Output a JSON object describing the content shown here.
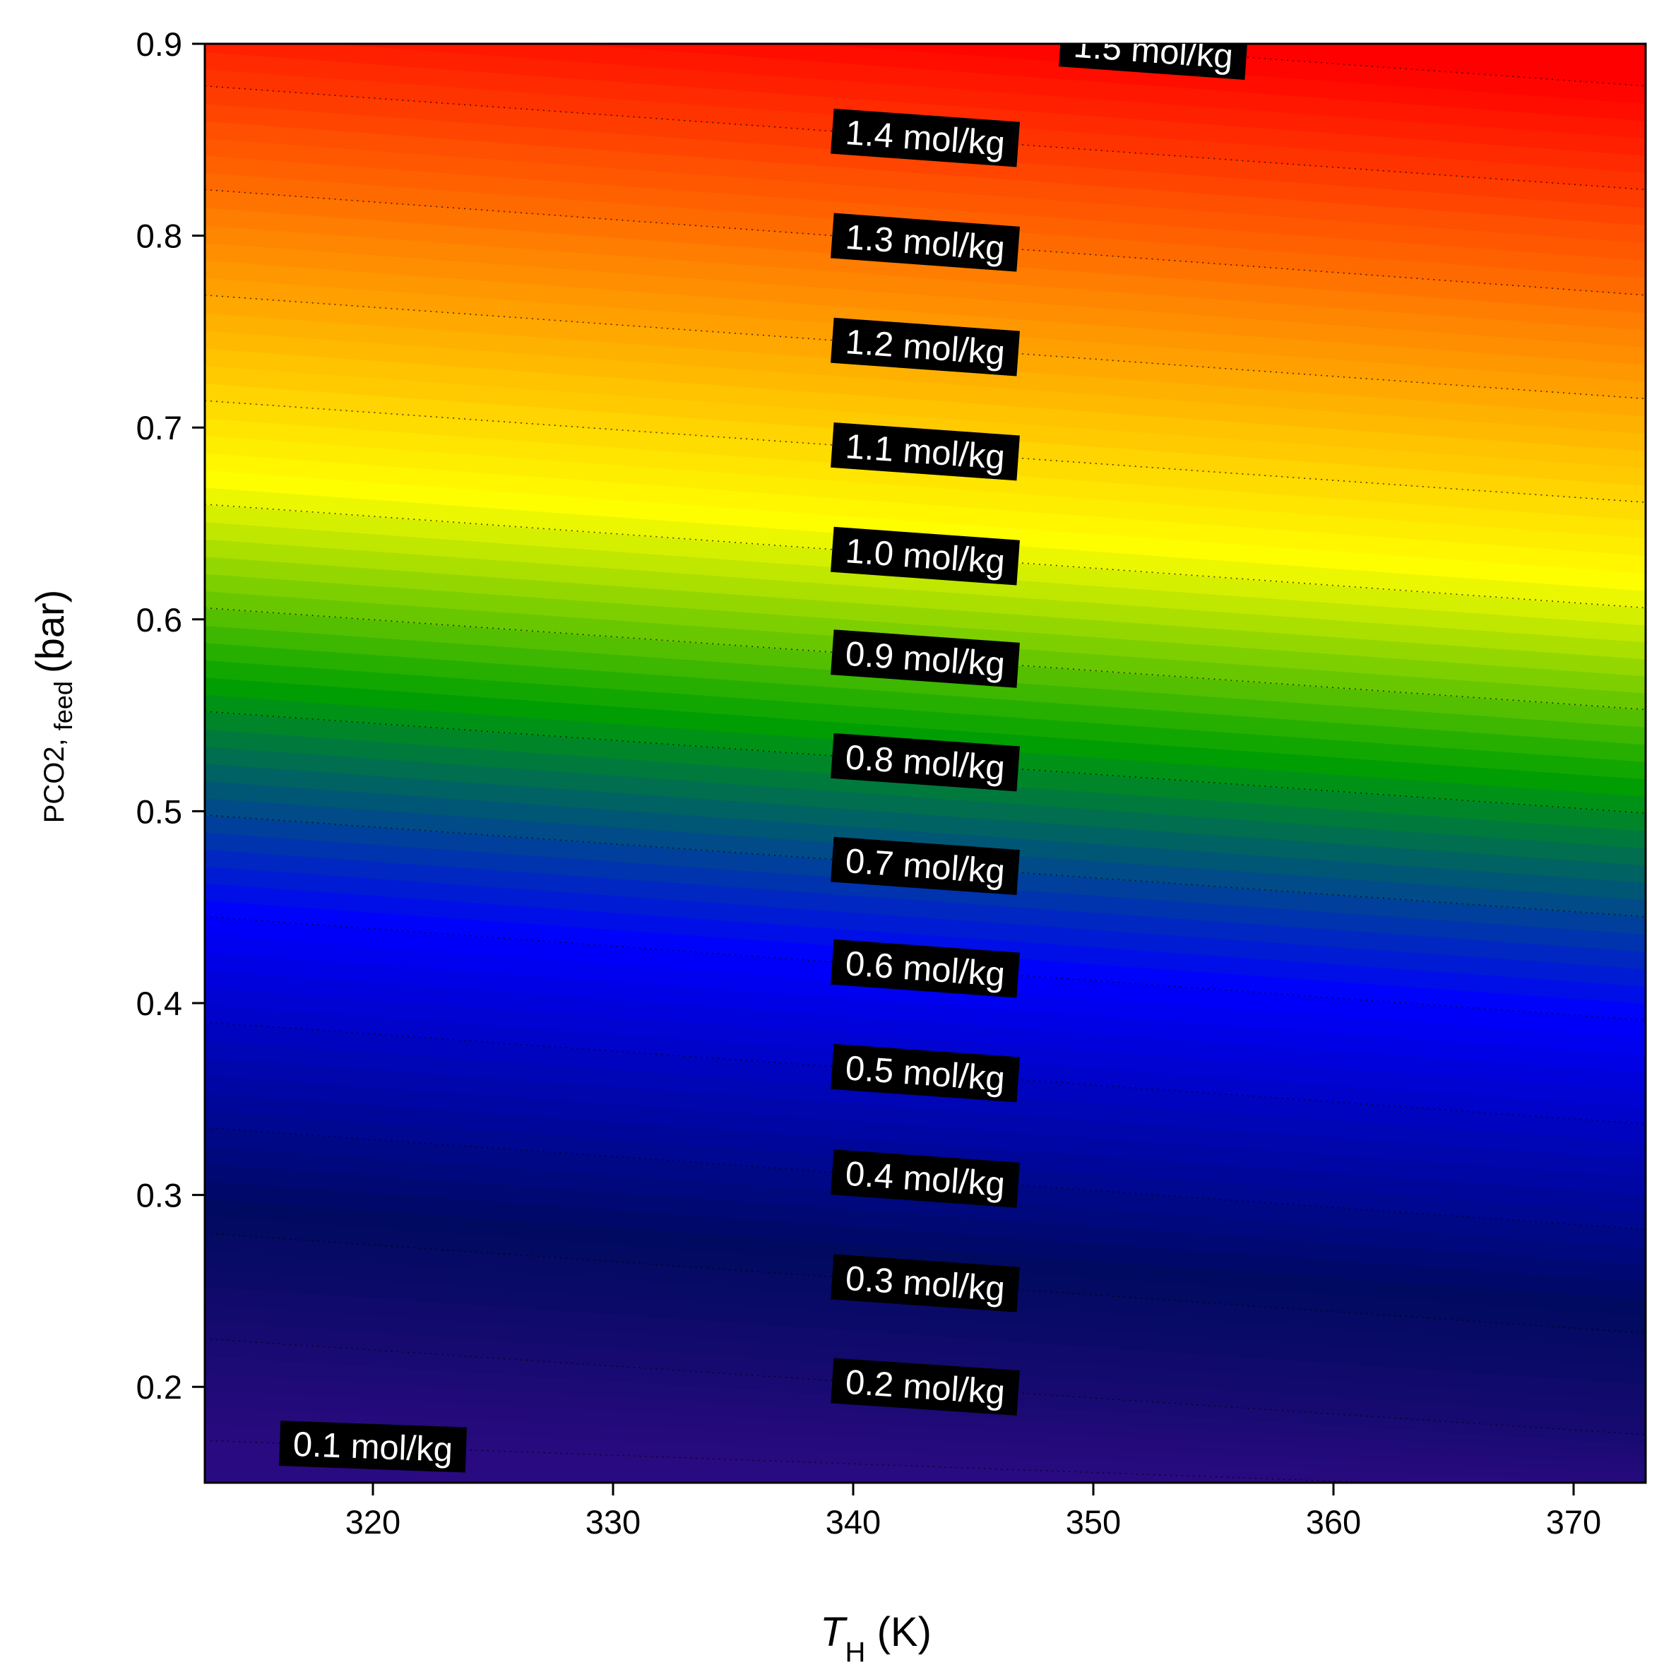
{
  "chart_data": {
    "type": "contour",
    "title": "",
    "x_axis": {
      "label_main": "T",
      "label_sub": "H",
      "label_unit": "(K)",
      "range": [
        313,
        373
      ],
      "ticks": [
        320,
        330,
        340,
        350,
        360,
        370
      ]
    },
    "y_axis": {
      "label_main": "PCO2, ",
      "label_sub": "feed",
      "label_unit": "(bar)",
      "range": [
        0.15,
        0.9
      ],
      "ticks": [
        0.2,
        0.3,
        0.4,
        0.5,
        0.6,
        0.7,
        0.8,
        0.9
      ],
      "tick_labels": [
        "0.2",
        "0.3",
        "0.4",
        "0.5",
        "0.6",
        "0.7",
        "0.8",
        "0.9"
      ]
    },
    "colormap": {
      "low_to_high": [
        "#2a0a80",
        "#000a60",
        "#0000ff",
        "#00a000",
        "#ffff00",
        "#ff8c00",
        "#ff0000"
      ],
      "positions": [
        0.0,
        0.16,
        0.36,
        0.52,
        0.66,
        0.82,
        1.0
      ],
      "value_range": [
        0.1,
        1.5
      ]
    },
    "contours": [
      {
        "level": 0.1,
        "label": "0.1 mol/kg",
        "p_at_313": 0.172,
        "p_at_373": 0.145,
        "label_x": 320
      },
      {
        "level": 0.2,
        "label": "0.2 mol/kg",
        "p_at_313": 0.225,
        "p_at_373": 0.175,
        "label_x": 343
      },
      {
        "level": 0.3,
        "label": "0.3 mol/kg",
        "p_at_313": 0.28,
        "p_at_373": 0.228,
        "label_x": 343
      },
      {
        "level": 0.4,
        "label": "0.4 mol/kg",
        "p_at_313": 0.335,
        "p_at_373": 0.282,
        "label_x": 343
      },
      {
        "level": 0.5,
        "label": "0.5 mol/kg",
        "p_at_313": 0.39,
        "p_at_373": 0.337,
        "label_x": 343
      },
      {
        "level": 0.6,
        "label": "0.6 mol/kg",
        "p_at_313": 0.445,
        "p_at_373": 0.391,
        "label_x": 343
      },
      {
        "level": 0.7,
        "label": "0.7 mol/kg",
        "p_at_313": 0.498,
        "p_at_373": 0.445,
        "label_x": 343
      },
      {
        "level": 0.8,
        "label": "0.8 mol/kg",
        "p_at_313": 0.552,
        "p_at_373": 0.499,
        "label_x": 343
      },
      {
        "level": 0.9,
        "label": "0.9 mol/kg",
        "p_at_313": 0.606,
        "p_at_373": 0.553,
        "label_x": 343
      },
      {
        "level": 1.0,
        "label": "1.0 mol/kg",
        "p_at_313": 0.66,
        "p_at_373": 0.606,
        "label_x": 343
      },
      {
        "level": 1.1,
        "label": "1.1 mol/kg",
        "p_at_313": 0.714,
        "p_at_373": 0.661,
        "label_x": 343
      },
      {
        "level": 1.2,
        "label": "1.2 mol/kg",
        "p_at_313": 0.769,
        "p_at_373": 0.715,
        "label_x": 343
      },
      {
        "level": 1.3,
        "label": "1.3 mol/kg",
        "p_at_313": 0.824,
        "p_at_373": 0.769,
        "label_x": 343
      },
      {
        "level": 1.4,
        "label": "1.4 mol/kg",
        "p_at_313": 0.878,
        "p_at_373": 0.824,
        "label_x": 343
      },
      {
        "level": 1.5,
        "label": "1.5 mol/kg",
        "p_at_313": 0.932,
        "p_at_373": 0.878,
        "label_x": 352.5
      }
    ],
    "grid": false,
    "legend": "none"
  }
}
